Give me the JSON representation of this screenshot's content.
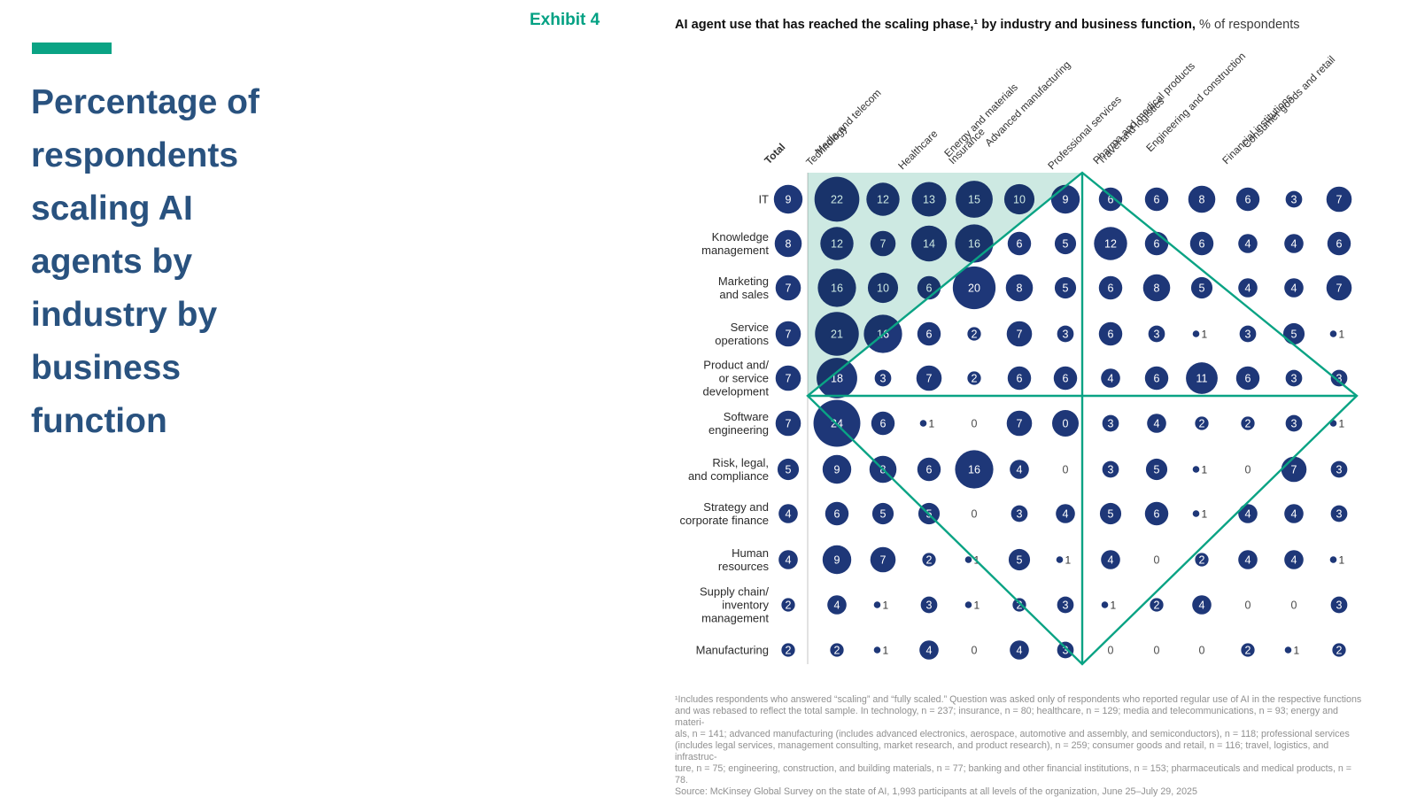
{
  "left_panel": {
    "title_lines": [
      "Percentage of",
      "respondents",
      "scaling AI",
      "agents by",
      "industry by",
      "business",
      "function"
    ]
  },
  "header": {
    "exhibit_label": "Exhibit 4",
    "chart_title_bold": "AI agent use that has reached the scaling phase,¹ by industry and business function,",
    "chart_title_unit": " % of respondents"
  },
  "chart_data": {
    "type": "bubble-matrix",
    "columns": [
      "Total",
      "Technology",
      "Media and telecom",
      "Healthcare",
      "Insurance",
      "Energy and materials",
      "Advanced manufacturing",
      "Professional services",
      "Travel and logistics",
      "Pharma and medical products",
      "Engineering and construction",
      "Financial institutions",
      "Consumer goods and retail"
    ],
    "rows": [
      {
        "label": [
          "IT"
        ],
        "values": [
          9,
          22,
          12,
          13,
          15,
          10,
          9,
          6,
          6,
          8,
          6,
          3,
          7
        ]
      },
      {
        "label": [
          "Knowledge",
          "management"
        ],
        "values": [
          8,
          12,
          7,
          14,
          16,
          6,
          5,
          12,
          6,
          6,
          4,
          4,
          6
        ]
      },
      {
        "label": [
          "Marketing",
          "and sales"
        ],
        "values": [
          7,
          16,
          10,
          6,
          20,
          8,
          5,
          6,
          8,
          5,
          4,
          4,
          7
        ]
      },
      {
        "label": [
          "Service",
          "operations"
        ],
        "values": [
          7,
          21,
          16,
          6,
          2,
          7,
          3,
          6,
          3,
          1,
          3,
          5,
          1
        ]
      },
      {
        "label": [
          "Product and/",
          "or service",
          "development"
        ],
        "values": [
          7,
          18,
          3,
          7,
          2,
          6,
          6,
          4,
          6,
          11,
          6,
          3,
          3
        ]
      },
      {
        "label": [
          "Software",
          "engineering"
        ],
        "values": [
          7,
          24,
          6,
          1,
          0,
          7,
          0,
          3,
          4,
          2,
          2,
          3,
          1
        ]
      },
      {
        "label": [
          "Risk, legal,",
          "and compliance"
        ],
        "values": [
          5,
          9,
          8,
          6,
          16,
          4,
          0,
          3,
          5,
          1,
          0,
          7,
          3
        ]
      },
      {
        "label": [
          "Strategy and",
          "corporate finance"
        ],
        "values": [
          4,
          6,
          5,
          5,
          0,
          3,
          4,
          5,
          6,
          1,
          4,
          4,
          3
        ]
      },
      {
        "label": [
          "Human",
          "resources"
        ],
        "values": [
          4,
          9,
          7,
          2,
          1,
          5,
          1,
          4,
          0,
          2,
          4,
          4,
          1
        ]
      },
      {
        "label": [
          "Supply chain/",
          "inventory",
          "management"
        ],
        "values": [
          2,
          4,
          1,
          3,
          1,
          2,
          3,
          1,
          2,
          4,
          0,
          0,
          3
        ]
      },
      {
        "label": [
          "Manufacturing"
        ],
        "values": [
          2,
          2,
          1,
          4,
          0,
          4,
          3,
          0,
          0,
          0,
          2,
          1,
          2
        ]
      }
    ],
    "anomalies": [
      {
        "row_index": 5,
        "col_index": 6,
        "display": "0",
        "bubble_radius": 15,
        "note": "zero shown inside a filled bubble"
      }
    ],
    "overlays": {
      "shaded_triangle_upper_left": true,
      "diamond_with_axes": true
    },
    "legend_position": "none",
    "colors": {
      "bubble": "#1e3778",
      "bubble_text": "#ffffff",
      "shade": "#cde9e2",
      "line": "#0aa384",
      "zero_text": "#4d4d4d",
      "one_text": "#333333",
      "divider": "#c4c4c4"
    }
  },
  "footnote": {
    "lines": [
      "¹Includes respondents who answered “scaling” and “fully scaled.” Question was asked only of respondents who reported regular use of AI in the respective functions",
      "and was rebased to reflect the total sample. In technology, n = 237; insurance, n = 80; healthcare, n = 129; media and telecommunications, n = 93; energy and materi-",
      "als, n = 141; advanced manufacturing (includes advanced electronics, aerospace, automotive and assembly, and semiconductors), n = 118; professional services",
      "(includes legal services, management consulting, market research, and product research), n = 259; consumer goods and retail, n = 116; travel, logistics, and infrastruc-",
      "ture, n = 75; engineering, construction, and building materials, n = 77; banking and other financial institutions, n = 153; pharmaceuticals and medical products, n = 78."
    ],
    "source": "Source: McKinsey Global Survey on the state of AI, 1,993 participants at all levels of the organization, June 25–July 29, 2025"
  }
}
